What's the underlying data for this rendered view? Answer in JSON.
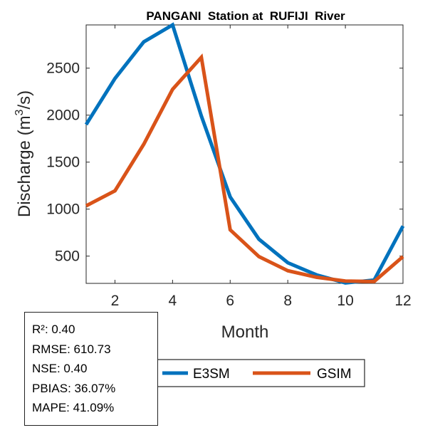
{
  "chart_data": {
    "type": "line",
    "title": "PANGANI  Station at  RUFIJI  River",
    "xlabel": "Month",
    "ylabel_main": "Discharge (m",
    "ylabel_sup": "3",
    "ylabel_end": "/s)",
    "xlim": [
      1,
      12
    ],
    "ylim": [
      210,
      2960
    ],
    "xticks": [
      2,
      4,
      6,
      8,
      10,
      12
    ],
    "yticks": [
      500,
      1000,
      1500,
      2000,
      2500
    ],
    "x": [
      1,
      2,
      3,
      4,
      5,
      6,
      7,
      8,
      9,
      10,
      11,
      12
    ],
    "series": [
      {
        "name": "E3SM",
        "color": "#0072BD",
        "values": [
          1900,
          2390,
          2780,
          2960,
          1990,
          1130,
          680,
          430,
          300,
          215,
          245,
          820
        ]
      },
      {
        "name": "GSIM",
        "color": "#D95319",
        "values": [
          1035,
          1195,
          1690,
          2275,
          2615,
          780,
          495,
          345,
          275,
          235,
          230,
          495
        ]
      }
    ],
    "legend_position": "bottom-center"
  },
  "stats": {
    "r2": "R²: 0.40",
    "rmse": "RMSE: 610.73",
    "nse": "NSE: 0.40",
    "pbias": "PBIAS: 36.07%",
    "mape": "MAPE: 41.09%"
  }
}
